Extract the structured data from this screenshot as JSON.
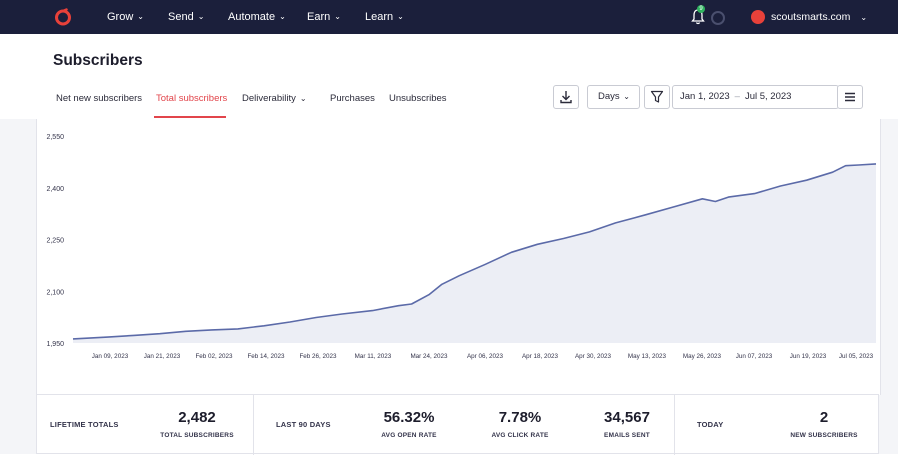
{
  "nav": {
    "items": [
      {
        "label": "Grow"
      },
      {
        "label": "Send"
      },
      {
        "label": "Automate"
      },
      {
        "label": "Earn"
      },
      {
        "label": "Learn"
      }
    ],
    "notification_count": "9",
    "account": "scoutsmarts.com"
  },
  "page": {
    "title": "Subscribers"
  },
  "tabs": [
    {
      "label": "Net new subscribers"
    },
    {
      "label": "Total subscribers",
      "active": true
    },
    {
      "label": "Deliverability"
    },
    {
      "label": "Purchases"
    },
    {
      "label": "Unsubscribes"
    }
  ],
  "toolbar": {
    "interval": "Days",
    "date_start": "Jan 1, 2023",
    "date_sep": "–",
    "date_end": "Jul 5, 2023"
  },
  "colors": {
    "nav_bg": "#1b1f3b",
    "accent": "#e2454b",
    "line": "#5b6aa8"
  },
  "chart_data": {
    "type": "area",
    "y_ticks": [
      "2,550",
      "2,400",
      "2,250",
      "2,100",
      "1,950"
    ],
    "ylim": [
      1950,
      2550
    ],
    "x_ticks": [
      "Jan 09, 2023",
      "Jan 21, 2023",
      "Feb 02, 2023",
      "Feb 14, 2023",
      "Feb 26, 2023",
      "Mar 11, 2023",
      "Mar 24, 2023",
      "Apr 06, 2023",
      "Apr 18, 2023",
      "Apr 30, 2023",
      "May 13, 2023",
      "May 26, 2023",
      "Jun 07, 2023",
      "Jun 19, 2023",
      "Jul 05, 2023"
    ],
    "xlim": [
      "2023-01-01",
      "2023-07-05"
    ],
    "points": [
      [
        "2023-01-01",
        1962
      ],
      [
        "2023-01-09",
        1967
      ],
      [
        "2023-01-15",
        1972
      ],
      [
        "2023-01-21",
        1977
      ],
      [
        "2023-01-27",
        1984
      ],
      [
        "2023-02-02",
        1988
      ],
      [
        "2023-02-08",
        1991
      ],
      [
        "2023-02-14",
        2000
      ],
      [
        "2023-02-20",
        2011
      ],
      [
        "2023-02-26",
        2024
      ],
      [
        "2023-03-04",
        2034
      ],
      [
        "2023-03-11",
        2044
      ],
      [
        "2023-03-17",
        2058
      ],
      [
        "2023-03-20",
        2063
      ],
      [
        "2023-03-24",
        2090
      ],
      [
        "2023-03-27",
        2120
      ],
      [
        "2023-03-31",
        2145
      ],
      [
        "2023-04-06",
        2178
      ],
      [
        "2023-04-12",
        2213
      ],
      [
        "2023-04-18",
        2236
      ],
      [
        "2023-04-24",
        2253
      ],
      [
        "2023-04-30",
        2272
      ],
      [
        "2023-05-06",
        2298
      ],
      [
        "2023-05-13",
        2322
      ],
      [
        "2023-05-19",
        2343
      ],
      [
        "2023-05-26",
        2368
      ],
      [
        "2023-05-29",
        2360
      ],
      [
        "2023-06-01",
        2373
      ],
      [
        "2023-06-07",
        2383
      ],
      [
        "2023-06-13",
        2405
      ],
      [
        "2023-06-19",
        2422
      ],
      [
        "2023-06-25",
        2445
      ],
      [
        "2023-06-28",
        2464
      ],
      [
        "2023-07-01",
        2466
      ],
      [
        "2023-07-05",
        2469
      ]
    ],
    "grid": false,
    "legend": "none"
  },
  "stats": {
    "lifetime_label": "LIFETIME TOTALS",
    "total_value": "2,482",
    "total_label": "TOTAL SUBSCRIBERS",
    "period_label": "LAST 90 DAYS",
    "open_value": "56.32%",
    "open_label": "AVG OPEN RATE",
    "click_value": "7.78%",
    "click_label": "AVG CLICK RATE",
    "emails_value": "34,567",
    "emails_label": "EMAILS SENT",
    "today_label": "TODAY",
    "new_value": "2",
    "new_label": "NEW SUBSCRIBERS"
  }
}
